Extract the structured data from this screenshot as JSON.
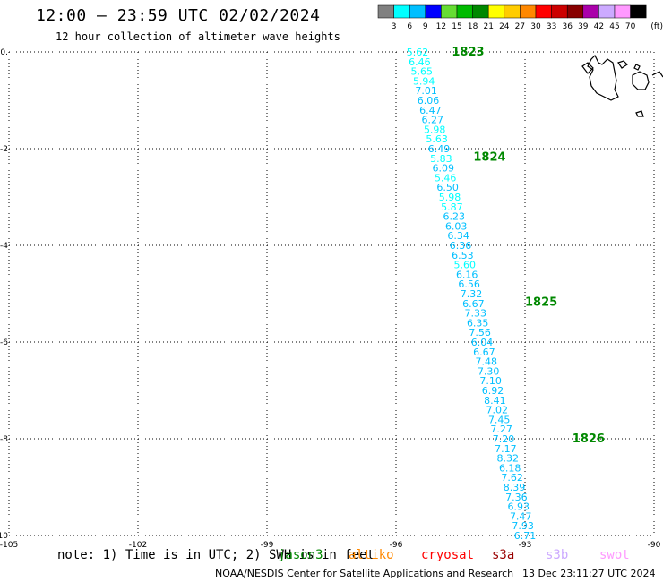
{
  "title": "12:00 – 23:59 UTC 02/02/2024",
  "subtitle": "12 hour collection of altimeter wave heights",
  "colorbar": {
    "labels": [
      "3",
      "6",
      "9",
      "12",
      "15",
      "18",
      "21",
      "24",
      "27",
      "30",
      "33",
      "36",
      "39",
      "42",
      "45",
      "70"
    ],
    "unit": "(ft)",
    "colors": [
      "#808080",
      "#00ffff",
      "#00bfff",
      "#0000ff",
      "#66dd33",
      "#00bb00",
      "#008800",
      "#ffff00",
      "#ffcc00",
      "#ff8800",
      "#ff0000",
      "#cc0000",
      "#880000",
      "#aa00aa",
      "#ccaaff",
      "#ff99ff",
      "#000000"
    ]
  },
  "note": "note: 1) Time is in UTC; 2) SWH is in feet",
  "satellites": [
    {
      "name": "jason3",
      "color": "#008800"
    },
    {
      "name": "altiko",
      "color": "#ff8800"
    },
    {
      "name": "cryosat",
      "color": "#ff0000"
    },
    {
      "name": "s3a",
      "color": "#990000"
    },
    {
      "name": "s3b",
      "color": "#ccaaff"
    },
    {
      "name": "swot",
      "color": "#ff99ff"
    }
  ],
  "footer": {
    "credit": "NOAA/NESDIS Center for Satellite Applications and Research",
    "timestamp": "13 Dec 23:11:27 UTC 2024"
  },
  "chart_data": {
    "type": "scatter",
    "xlim": [
      -105,
      -90
    ],
    "ylim": [
      -10,
      0
    ],
    "x_ticks": [
      -105,
      -102,
      -99,
      -96,
      -93,
      -90
    ],
    "y_ticks": [
      0,
      -2,
      -4,
      -6,
      -8,
      -10
    ],
    "grid": true,
    "point_color": "#00bfff",
    "time_labels": [
      {
        "label": "1823",
        "x": -94.7,
        "y": 0.0
      },
      {
        "label": "1824",
        "x": -94.2,
        "y": -2.18
      },
      {
        "label": "1825",
        "x": -93.0,
        "y": -5.18
      },
      {
        "label": "1826",
        "x": -91.9,
        "y": -8.0
      }
    ],
    "points": [
      {
        "x": -95.5,
        "y": 0.0,
        "v": "5.62",
        "c": "#00ffff"
      },
      {
        "x": -95.45,
        "y": -0.2,
        "v": "6.46",
        "c": "#00ffff"
      },
      {
        "x": -95.4,
        "y": -0.4,
        "v": "5.65",
        "c": "#00ffff"
      },
      {
        "x": -95.35,
        "y": -0.6,
        "v": "5.94",
        "c": "#00ffff"
      },
      {
        "x": -95.3,
        "y": -0.8,
        "v": "7.01",
        "c": "#00bfff"
      },
      {
        "x": -95.25,
        "y": -1.0,
        "v": "6.06",
        "c": "#00bfff"
      },
      {
        "x": -95.2,
        "y": -1.2,
        "v": "6.47",
        "c": "#00bfff"
      },
      {
        "x": -95.15,
        "y": -1.4,
        "v": "6.27",
        "c": "#00bfff"
      },
      {
        "x": -95.1,
        "y": -1.6,
        "v": "5.98",
        "c": "#00ffff"
      },
      {
        "x": -95.05,
        "y": -1.8,
        "v": "5.63",
        "c": "#00ffff"
      },
      {
        "x": -95.0,
        "y": -2.0,
        "v": "6.49",
        "c": "#00bfff"
      },
      {
        "x": -94.95,
        "y": -2.2,
        "v": "5.83",
        "c": "#00ffff"
      },
      {
        "x": -94.9,
        "y": -2.4,
        "v": "6.09",
        "c": "#00bfff"
      },
      {
        "x": -94.85,
        "y": -2.6,
        "v": "5.46",
        "c": "#00ffff"
      },
      {
        "x": -94.8,
        "y": -2.8,
        "v": "6.50",
        "c": "#00bfff"
      },
      {
        "x": -94.75,
        "y": -3.0,
        "v": "5.98",
        "c": "#00ffff"
      },
      {
        "x": -94.7,
        "y": -3.2,
        "v": "5.87",
        "c": "#00ffff"
      },
      {
        "x": -94.65,
        "y": -3.4,
        "v": "6.23",
        "c": "#00bfff"
      },
      {
        "x": -94.6,
        "y": -3.6,
        "v": "6.03",
        "c": "#00bfff"
      },
      {
        "x": -94.55,
        "y": -3.8,
        "v": "6.34",
        "c": "#00bfff"
      },
      {
        "x": -94.5,
        "y": -4.0,
        "v": "6.36",
        "c": "#00bfff"
      },
      {
        "x": -94.45,
        "y": -4.2,
        "v": "6.53",
        "c": "#00bfff"
      },
      {
        "x": -94.4,
        "y": -4.4,
        "v": "5.60",
        "c": "#00ffff"
      },
      {
        "x": -94.35,
        "y": -4.6,
        "v": "6.16",
        "c": "#00bfff"
      },
      {
        "x": -94.3,
        "y": -4.8,
        "v": "6.56",
        "c": "#00bfff"
      },
      {
        "x": -94.25,
        "y": -5.0,
        "v": "7.32",
        "c": "#00bfff"
      },
      {
        "x": -94.2,
        "y": -5.2,
        "v": "6.67",
        "c": "#00bfff"
      },
      {
        "x": -94.15,
        "y": -5.4,
        "v": "7.33",
        "c": "#00bfff"
      },
      {
        "x": -94.1,
        "y": -5.6,
        "v": "6.35",
        "c": "#00bfff"
      },
      {
        "x": -94.05,
        "y": -5.8,
        "v": "7.56",
        "c": "#00bfff"
      },
      {
        "x": -94.0,
        "y": -6.0,
        "v": "6.04",
        "c": "#00bfff"
      },
      {
        "x": -93.95,
        "y": -6.2,
        "v": "6.67",
        "c": "#00bfff"
      },
      {
        "x": -93.9,
        "y": -6.4,
        "v": "7.48",
        "c": "#00bfff"
      },
      {
        "x": -93.85,
        "y": -6.6,
        "v": "7.30",
        "c": "#00bfff"
      },
      {
        "x": -93.8,
        "y": -6.8,
        "v": "7.10",
        "c": "#00bfff"
      },
      {
        "x": -93.75,
        "y": -7.0,
        "v": "6.92",
        "c": "#00bfff"
      },
      {
        "x": -93.7,
        "y": -7.2,
        "v": "8.41",
        "c": "#00bfff"
      },
      {
        "x": -93.65,
        "y": -7.4,
        "v": "7.02",
        "c": "#00bfff"
      },
      {
        "x": -93.6,
        "y": -7.6,
        "v": "7.45",
        "c": "#00bfff"
      },
      {
        "x": -93.55,
        "y": -7.8,
        "v": "7.27",
        "c": "#00bfff"
      },
      {
        "x": -93.5,
        "y": -8.0,
        "v": "7.20",
        "c": "#00bfff"
      },
      {
        "x": -93.45,
        "y": -8.2,
        "v": "7.17",
        "c": "#00bfff"
      },
      {
        "x": -93.4,
        "y": -8.4,
        "v": "8.32",
        "c": "#00bfff"
      },
      {
        "x": -93.35,
        "y": -8.6,
        "v": "6.18",
        "c": "#00bfff"
      },
      {
        "x": -93.3,
        "y": -8.8,
        "v": "7.62",
        "c": "#00bfff"
      },
      {
        "x": -93.25,
        "y": -9.0,
        "v": "8.39",
        "c": "#00bfff"
      },
      {
        "x": -93.2,
        "y": -9.2,
        "v": "7.36",
        "c": "#00bfff"
      },
      {
        "x": -93.15,
        "y": -9.4,
        "v": "6.93",
        "c": "#00bfff"
      },
      {
        "x": -93.1,
        "y": -9.6,
        "v": "7.47",
        "c": "#00bfff"
      },
      {
        "x": -93.05,
        "y": -9.8,
        "v": "7.93",
        "c": "#00bfff"
      },
      {
        "x": -93.0,
        "y": -10.0,
        "v": "6.71",
        "c": "#00bfff"
      }
    ]
  }
}
